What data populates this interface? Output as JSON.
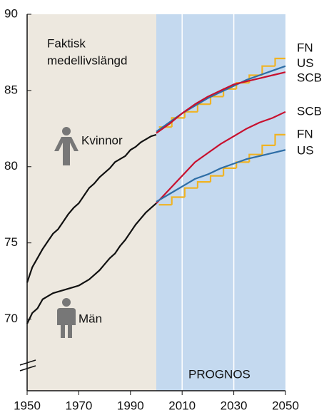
{
  "chart_data": {
    "type": "line",
    "xlim": [
      1950,
      2050
    ],
    "ylim": [
      65.3,
      90
    ],
    "xticks": [
      1950,
      1970,
      1990,
      2010,
      2030,
      2050
    ],
    "yticks": [
      70,
      75,
      80,
      85,
      90
    ],
    "regions": [
      {
        "x": [
          1950,
          2000
        ],
        "color": "#ede8df"
      },
      {
        "x": [
          2000,
          2050
        ],
        "color": "#c4d9ef"
      }
    ],
    "annotations": {
      "actual": [
        "Faktisk",
        "medellivslängd"
      ],
      "women": "Kvinnor",
      "men": "Män",
      "forecast": "PROGNOS"
    },
    "series": [
      {
        "color": "#111111",
        "x": [
          1950,
          1952,
          1954,
          1956,
          1958,
          1960,
          1962,
          1964,
          1966,
          1968,
          1970,
          1972,
          1974,
          1976,
          1978,
          1980,
          1982,
          1984,
          1986,
          1988,
          1990,
          1992,
          1994,
          1996,
          1998,
          2000
        ],
        "values": [
          72.4,
          73.4,
          74.0,
          74.6,
          75.1,
          75.6,
          75.9,
          76.4,
          76.9,
          77.3,
          77.6,
          78.1,
          78.6,
          78.9,
          79.3,
          79.6,
          79.9,
          80.3,
          80.5,
          80.7,
          81.1,
          81.3,
          81.6,
          81.8,
          82.0,
          82.1
        ]
      },
      {
        "color": "#111111",
        "x": [
          1950,
          1952,
          1954,
          1956,
          1958,
          1960,
          1962,
          1964,
          1966,
          1968,
          1970,
          1972,
          1974,
          1976,
          1978,
          1980,
          1982,
          1984,
          1986,
          1988,
          1990,
          1992,
          1994,
          1996,
          1998,
          2000
        ],
        "values": [
          69.7,
          70.4,
          70.7,
          71.3,
          71.5,
          71.7,
          71.8,
          71.9,
          72.0,
          72.1,
          72.2,
          72.4,
          72.6,
          72.9,
          73.2,
          73.6,
          74.0,
          74.3,
          74.8,
          75.2,
          75.7,
          76.2,
          76.6,
          77.0,
          77.3,
          77.6
        ]
      },
      {
        "name": "FN",
        "color": "#f0b323",
        "step": true,
        "x": [
          2001,
          2006,
          2011,
          2016,
          2021,
          2026,
          2031,
          2036,
          2041,
          2046
        ],
        "values": [
          82.6,
          83.2,
          83.6,
          84.1,
          84.6,
          85.1,
          85.5,
          86.0,
          86.6,
          87.1
        ]
      },
      {
        "name": "US",
        "color": "#2e6ea6",
        "x": [
          2000,
          2005,
          2010,
          2015,
          2020,
          2025,
          2030,
          2035,
          2040,
          2045,
          2050
        ],
        "values": [
          82.3,
          82.9,
          83.5,
          84.0,
          84.5,
          84.9,
          85.3,
          85.7,
          86.0,
          86.3,
          86.6
        ]
      },
      {
        "name": "SCB",
        "color": "#c8102e",
        "x": [
          2000,
          2005,
          2010,
          2015,
          2020,
          2025,
          2030,
          2035,
          2040,
          2045,
          2050
        ],
        "values": [
          82.2,
          82.8,
          83.5,
          84.1,
          84.6,
          85.0,
          85.4,
          85.6,
          85.8,
          86.0,
          86.2
        ]
      },
      {
        "name": "SCB",
        "color": "#c8102e",
        "x": [
          2000,
          2005,
          2010,
          2015,
          2020,
          2025,
          2030,
          2035,
          2040,
          2045,
          2050
        ],
        "values": [
          77.6,
          78.5,
          79.4,
          80.3,
          80.9,
          81.5,
          82.0,
          82.5,
          82.9,
          83.2,
          83.6
        ]
      },
      {
        "name": "FN",
        "color": "#f0b323",
        "step": true,
        "x": [
          2001,
          2006,
          2011,
          2016,
          2021,
          2026,
          2031,
          2036,
          2041,
          2046
        ],
        "values": [
          77.5,
          78.0,
          78.6,
          79.0,
          79.4,
          79.9,
          80.3,
          80.8,
          81.4,
          82.1
        ]
      },
      {
        "name": "US",
        "color": "#2e6ea6",
        "x": [
          2000,
          2005,
          2010,
          2015,
          2020,
          2025,
          2030,
          2035,
          2040,
          2045,
          2050
        ],
        "values": [
          77.7,
          78.2,
          78.7,
          79.2,
          79.5,
          79.9,
          80.2,
          80.5,
          80.7,
          80.9,
          81.1
        ]
      }
    ]
  }
}
